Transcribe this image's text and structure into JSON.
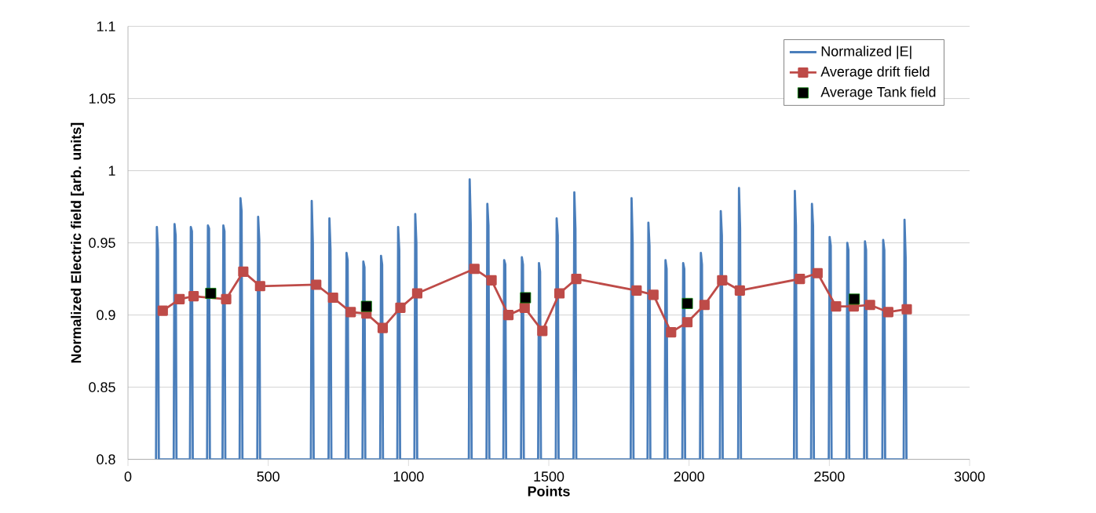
{
  "chart_data": {
    "type": "line",
    "xlabel": "Points",
    "ylabel": "Normalized Electric field [arb. units]",
    "xlim": [
      0,
      3000
    ],
    "xticks": [
      0,
      500,
      1000,
      1500,
      2000,
      2500,
      3000
    ],
    "ylim": [
      0.8,
      1.1
    ],
    "yticks": [
      0.8,
      0.85,
      0.9,
      0.95,
      1,
      1.05,
      1.1
    ],
    "grid": "y",
    "legend": "top right",
    "series": [
      {
        "name": "Normalized |E|",
        "marker": "none",
        "color": "#4a7ebb",
        "x": [
          100,
          103,
          107,
          110,
          163,
          166,
          170,
          173,
          221,
          224,
          228,
          231,
          282,
          285,
          289,
          292,
          337,
          340,
          344,
          347,
          398,
          401,
          405,
          408,
          461,
          464,
          468,
          471,
          652,
          655,
          659,
          662,
          715,
          718,
          722,
          725,
          776,
          779,
          783,
          786,
          836,
          839,
          843,
          846,
          899,
          902,
          906,
          909,
          960,
          963,
          967,
          970,
          1021,
          1024,
          1028,
          1031,
          1215,
          1218,
          1222,
          1225,
          1278,
          1281,
          1285,
          1288,
          1338,
          1341,
          1345,
          1348,
          1401,
          1404,
          1408,
          1411,
          1462,
          1465,
          1469,
          1472,
          1525,
          1528,
          1532,
          1535,
          1588,
          1591,
          1595,
          1598,
          1792,
          1795,
          1799,
          1802,
          1852,
          1855,
          1859,
          1862,
          1913,
          1916,
          1920,
          1923,
          1976,
          1979,
          1983,
          1986,
          2039,
          2042,
          2046,
          2049,
          2110,
          2113,
          2117,
          2120,
          2175,
          2178,
          2182,
          2185,
          2374,
          2377,
          2381,
          2384,
          2435,
          2438,
          2442,
          2445,
          2498,
          2501,
          2505,
          2508,
          2561,
          2564,
          2568,
          2571,
          2624,
          2627,
          2631,
          2634,
          2689,
          2692,
          2696,
          2699,
          2765,
          2768,
          2772,
          2775
        ],
        "values": [
          0.8,
          0.961,
          0.945,
          0.8,
          0.8,
          0.963,
          0.955,
          0.8,
          0.8,
          0.961,
          0.958,
          0.8,
          0.8,
          0.962,
          0.96,
          0.8,
          0.8,
          0.962,
          0.958,
          0.8,
          0.8,
          0.981,
          0.972,
          0.8,
          0.8,
          0.968,
          0.952,
          0.8,
          0.8,
          0.979,
          0.95,
          0.8,
          0.8,
          0.967,
          0.945,
          0.8,
          0.8,
          0.943,
          0.938,
          0.8,
          0.8,
          0.937,
          0.933,
          0.8,
          0.8,
          0.941,
          0.935,
          0.8,
          0.8,
          0.961,
          0.945,
          0.8,
          0.8,
          0.97,
          0.95,
          0.8,
          0.8,
          0.994,
          0.962,
          0.8,
          0.8,
          0.977,
          0.962,
          0.8,
          0.8,
          0.938,
          0.935,
          0.8,
          0.8,
          0.94,
          0.935,
          0.8,
          0.8,
          0.936,
          0.93,
          0.8,
          0.8,
          0.967,
          0.955,
          0.8,
          0.8,
          0.985,
          0.96,
          0.8,
          0.8,
          0.981,
          0.95,
          0.8,
          0.8,
          0.964,
          0.948,
          0.8,
          0.8,
          0.938,
          0.932,
          0.8,
          0.8,
          0.936,
          0.932,
          0.8,
          0.8,
          0.943,
          0.935,
          0.8,
          0.8,
          0.972,
          0.955,
          0.8,
          0.8,
          0.988,
          0.96,
          0.8,
          0.8,
          0.986,
          0.962,
          0.8,
          0.8,
          0.977,
          0.962,
          0.8,
          0.8,
          0.954,
          0.948,
          0.8,
          0.8,
          0.95,
          0.945,
          0.8,
          0.8,
          0.951,
          0.945,
          0.8,
          0.8,
          0.952,
          0.945,
          0.8,
          0.8,
          0.966,
          0.94,
          0.8
        ]
      },
      {
        "name": "Average drift field",
        "marker": "square",
        "color": "#be4b48",
        "x": [
          124,
          184,
          234,
          350,
          411,
          471,
          671,
          731,
          794,
          850,
          908,
          971,
          1031,
          1235,
          1296,
          1356,
          1414,
          1477,
          1538,
          1598,
          1813,
          1873,
          1936,
          1994,
          2055,
          2118,
          2181,
          2395,
          2458,
          2524,
          2587,
          2645,
          2710,
          2776
        ],
        "values": [
          0.903,
          0.911,
          0.913,
          0.911,
          0.93,
          0.92,
          0.921,
          0.912,
          0.902,
          0.901,
          0.891,
          0.905,
          0.915,
          0.932,
          0.924,
          0.9,
          0.905,
          0.889,
          0.915,
          0.925,
          0.917,
          0.914,
          0.888,
          0.895,
          0.907,
          0.924,
          0.917,
          0.925,
          0.929,
          0.906,
          0.906,
          0.907,
          0.902,
          0.904
        ]
      },
      {
        "name": "Average Tank field",
        "type": "scatter",
        "marker": "square",
        "color": "#000000",
        "x": [
          295,
          850,
          1417,
          1994,
          2589
        ],
        "values": [
          0.915,
          0.906,
          0.912,
          0.908,
          0.911
        ]
      }
    ]
  }
}
